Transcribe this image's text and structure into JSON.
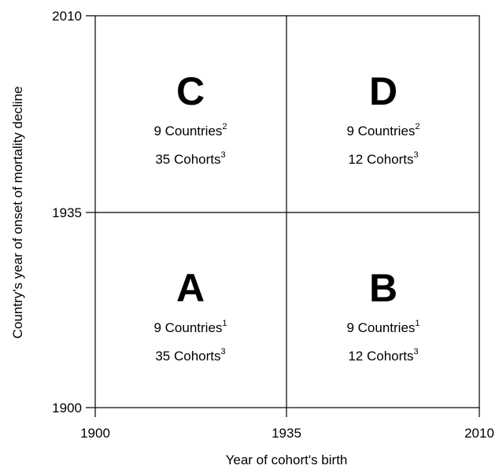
{
  "axes": {
    "x_label": "Year of cohort's birth",
    "y_label": "Country's year of onset of mortality decline",
    "x_ticks": [
      "1900",
      "1935",
      "2010"
    ],
    "y_ticks": [
      "2010",
      "1935",
      "1900"
    ]
  },
  "quadrants": [
    {
      "letter": "C",
      "countries": "9 Countries",
      "countries_note": "2",
      "cohorts": "35 Cohorts",
      "cohorts_note": "3"
    },
    {
      "letter": "D",
      "countries": "9 Countries",
      "countries_note": "2",
      "cohorts": "12 Cohorts",
      "cohorts_note": "3"
    },
    {
      "letter": "A",
      "countries": "9 Countries",
      "countries_note": "1",
      "cohorts": "35 Cohorts",
      "cohorts_note": "3"
    },
    {
      "letter": "B",
      "countries": "9 Countries",
      "countries_note": "1",
      "cohorts": "12 Cohorts",
      "cohorts_note": "3"
    }
  ]
}
